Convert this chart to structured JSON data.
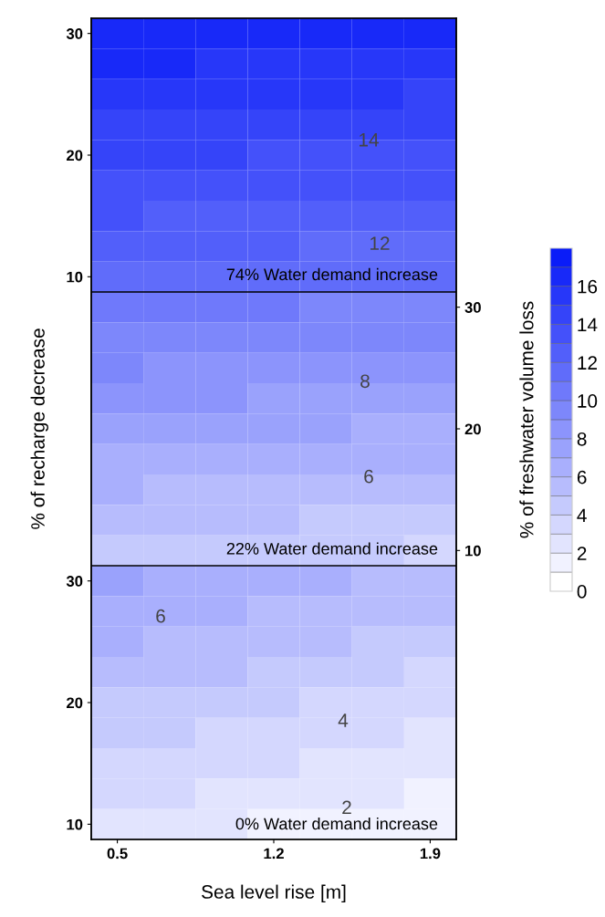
{
  "chart_data": {
    "type": "heatmap",
    "categories": [
      "0.5",
      null,
      null,
      "1.2",
      null,
      null,
      "1.9"
    ],
    "y_categories": [
      "30",
      null,
      null,
      null,
      "20",
      null,
      null,
      null,
      "10",
      null,
      null,
      null,
      null,
      null,
      null,
      null,
      null,
      null,
      "30",
      null,
      null,
      null,
      "20",
      null,
      null,
      null,
      "10"
    ],
    "y2_categories": [
      null,
      null,
      null,
      null,
      null,
      null,
      null,
      null,
      null,
      "30",
      null,
      null,
      null,
      "20",
      null,
      null,
      null,
      "10",
      null,
      null,
      null,
      null,
      null,
      null,
      null,
      null,
      null
    ],
    "xlabel": "Sea level rise [m]",
    "ylabel": "% of recharge decrease",
    "clabel": "% of freshwater volume loss",
    "clim": [
      0,
      18
    ],
    "cticks": [
      0,
      2,
      4,
      6,
      8,
      10,
      12,
      14,
      16
    ],
    "cells": [
      [
        16.8,
        16.7,
        16.6,
        16.4,
        16.3,
        16.2,
        16.1
      ],
      [
        16.2,
        16.0,
        15.9,
        15.8,
        15.7,
        15.6,
        15.5
      ],
      [
        15.5,
        15.4,
        15.3,
        15.2,
        15.1,
        15.0,
        14.8
      ],
      [
        14.9,
        14.8,
        14.7,
        14.6,
        14.4,
        14.3,
        14.2
      ],
      [
        14.3,
        14.2,
        14.1,
        13.9,
        13.8,
        13.7,
        13.6
      ],
      [
        13.7,
        13.5,
        13.4,
        13.3,
        13.2,
        13.1,
        13.0
      ],
      [
        13.0,
        12.9,
        12.8,
        12.7,
        12.6,
        12.5,
        12.3
      ],
      [
        12.4,
        12.3,
        12.2,
        12.1,
        11.9,
        11.8,
        11.7
      ],
      [
        11.8,
        11.7,
        11.6,
        11.4,
        11.3,
        11.2,
        11.1
      ],
      [
        10.4,
        10.3,
        10.2,
        10.1,
        9.9,
        9.8,
        9.7
      ],
      [
        9.7,
        9.6,
        9.5,
        9.3,
        9.2,
        9.1,
        9.0
      ],
      [
        9.0,
        8.9,
        8.7,
        8.6,
        8.5,
        8.4,
        8.3
      ],
      [
        8.2,
        8.1,
        8.0,
        7.9,
        7.8,
        7.7,
        7.5
      ],
      [
        7.5,
        7.4,
        7.3,
        7.2,
        7.1,
        6.9,
        6.8
      ],
      [
        6.8,
        6.7,
        6.6,
        6.4,
        6.3,
        6.2,
        6.1
      ],
      [
        6.1,
        5.9,
        5.8,
        5.7,
        5.6,
        5.5,
        5.4
      ],
      [
        5.3,
        5.2,
        5.1,
        5.0,
        4.9,
        4.8,
        4.6
      ],
      [
        4.6,
        4.5,
        4.4,
        4.3,
        4.2,
        4.0,
        3.9
      ],
      [
        7.1,
        6.9,
        6.6,
        6.3,
        6.1,
        5.8,
        5.5
      ],
      [
        6.6,
        6.3,
        6.1,
        5.8,
        5.5,
        5.3,
        5.0
      ],
      [
        6.0,
        5.8,
        5.5,
        5.2,
        5.0,
        4.7,
        4.4
      ],
      [
        5.5,
        5.2,
        5.0,
        4.7,
        4.4,
        4.2,
        3.9
      ],
      [
        4.9,
        4.7,
        4.4,
        4.1,
        3.9,
        3.6,
        3.3
      ],
      [
        4.4,
        4.1,
        3.9,
        3.6,
        3.3,
        3.1,
        2.8
      ],
      [
        3.8,
        3.6,
        3.3,
        3.0,
        2.8,
        2.5,
        2.2
      ],
      [
        3.3,
        3.0,
        2.8,
        2.5,
        2.2,
        2.0,
        1.7
      ],
      [
        2.7,
        2.5,
        2.2,
        1.9,
        1.7,
        1.4,
        1.1
      ]
    ],
    "annotations": [
      "14",
      "12",
      "74% Water demand increase",
      "8",
      "6",
      "22% Water demand increase",
      "6",
      "4",
      "2",
      "0% Water demand increase"
    ]
  }
}
